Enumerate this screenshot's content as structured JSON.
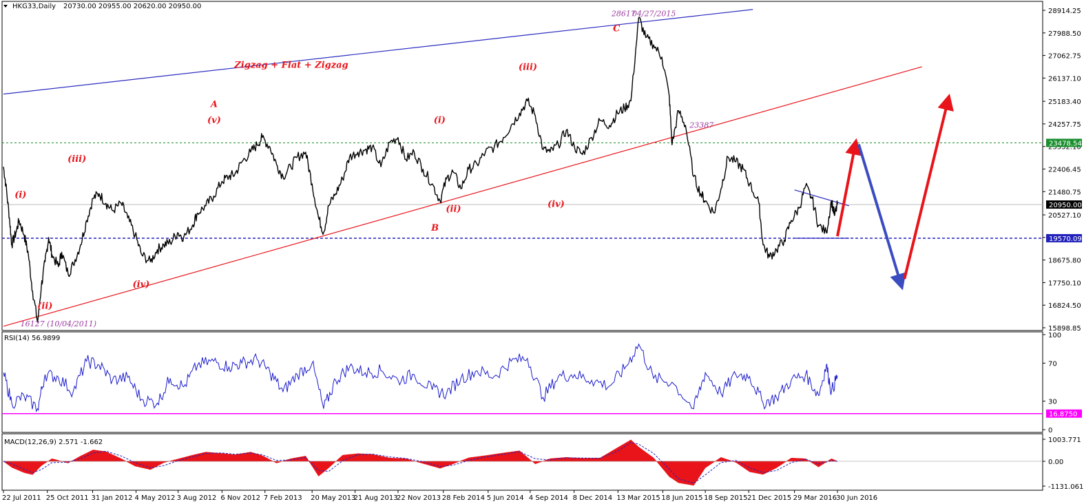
{
  "chart_data": {
    "type": "line",
    "symbol": "HKG33,Daily",
    "ohlc_header": "20730.00 20955.00 20620.00 20950.00",
    "price_panel": {
      "ylim": [
        15898.85,
        28914.25
      ],
      "y_ticks": [
        28914.25,
        27988.5,
        27062.75,
        26137.1,
        25183.4,
        24257.75,
        23332.1,
        22406.45,
        21480.75,
        20527.1,
        19601.4,
        18675.8,
        17750.1,
        16824.5,
        15898.85
      ],
      "price_tags": [
        {
          "label": "23478.54",
          "value": 23478.54,
          "color": "#1a8f2e",
          "text_color": "#ffffff",
          "line": "dotted"
        },
        {
          "label": "20950.00",
          "value": 20950.0,
          "color": "#000000",
          "text_color": "#ffffff",
          "line": "solid-gray"
        },
        {
          "label": "19570.09",
          "value": 19570.09,
          "color": "#2222bb",
          "text_color": "#ffffff",
          "line": "dashed"
        }
      ],
      "series": [
        {
          "type": "line",
          "x": [
            "2011-07-22",
            "2011-07-27",
            "2011-08-04",
            "2011-08-09",
            "2011-08-18",
            "2011-08-25",
            "2011-09-05",
            "2011-09-14",
            "2011-09-23",
            "2011-10-04",
            "2011-10-12",
            "2011-10-20",
            "2011-10-28",
            "2011-11-04",
            "2011-11-18",
            "2011-11-25",
            "2011-12-09",
            "2011-12-20",
            "2012-01-05",
            "2012-01-18",
            "2012-02-01",
            "2012-02-14",
            "2012-02-29",
            "2012-03-14",
            "2012-04-02",
            "2012-04-16",
            "2012-05-02",
            "2012-05-16",
            "2012-06-04",
            "2012-06-19",
            "2012-07-03",
            "2012-07-17",
            "2012-08-02",
            "2012-08-15",
            "2012-09-03",
            "2012-09-14",
            "2012-10-02",
            "2012-10-19",
            "2012-11-06",
            "2012-11-21",
            "2012-12-04",
            "2012-12-19",
            "2013-01-07",
            "2013-01-21",
            "2013-02-01",
            "2013-02-18",
            "2013-03-04",
            "2013-03-18",
            "2013-04-04",
            "2013-04-18",
            "2013-05-06",
            "2013-05-20",
            "2013-06-03",
            "2013-06-14",
            "2013-06-25",
            "2013-07-10",
            "2013-07-25",
            "2013-08-09",
            "2013-08-27",
            "2013-09-12",
            "2013-09-27",
            "2013-10-16",
            "2013-11-04",
            "2013-11-22",
            "2013-12-09",
            "2013-12-27",
            "2014-01-15",
            "2014-02-04",
            "2014-02-21",
            "2014-03-07",
            "2014-03-21",
            "2014-04-07",
            "2014-04-24",
            "2014-05-12",
            "2014-05-30",
            "2014-06-18",
            "2014-07-08",
            "2014-07-25",
            "2014-08-12",
            "2014-08-29",
            "2014-09-15",
            "2014-10-02",
            "2014-10-17",
            "2014-11-04",
            "2014-11-21",
            "2014-12-09",
            "2014-12-26",
            "2015-01-15",
            "2015-02-02",
            "2015-02-23",
            "2015-03-12",
            "2015-03-27",
            "2015-04-10",
            "2015-04-27",
            "2015-05-12",
            "2015-05-29",
            "2015-06-16",
            "2015-07-02",
            "2015-07-08",
            "2015-07-22",
            "2015-08-06",
            "2015-08-24",
            "2015-09-08",
            "2015-09-18",
            "2015-10-07",
            "2015-10-22",
            "2015-11-06",
            "2015-11-23",
            "2015-12-09",
            "2015-12-23",
            "2016-01-12",
            "2016-01-21",
            "2016-02-04",
            "2016-02-19",
            "2016-03-07",
            "2016-03-22",
            "2016-04-08",
            "2016-04-22",
            "2016-05-06",
            "2016-05-20",
            "2016-06-06",
            "2016-06-17",
            "2016-06-24",
            "2016-06-30"
          ],
          "values": [
            22500,
            21800,
            20400,
            19300,
            19800,
            20300,
            19700,
            18900,
            17400,
            16127,
            17600,
            18600,
            19600,
            18900,
            18400,
            19000,
            18100,
            18500,
            19300,
            20300,
            21200,
            21400,
            21000,
            20700,
            21000,
            20400,
            19700,
            18900,
            18600,
            19100,
            19300,
            19400,
            19800,
            19600,
            20100,
            20600,
            20900,
            21300,
            21900,
            22100,
            22200,
            22700,
            23100,
            23400,
            23700,
            23300,
            22600,
            22100,
            22500,
            22900,
            23100,
            21800,
            20400,
            19800,
            20900,
            21400,
            22000,
            22900,
            23100,
            23200,
            23300,
            22500,
            23500,
            23700,
            22800,
            23100,
            22400,
            21800,
            21100,
            22000,
            22300,
            21600,
            22400,
            22600,
            23100,
            23300,
            23700,
            24200,
            24700,
            25200,
            24600,
            23200,
            23100,
            23400,
            24000,
            23300,
            23000,
            23700,
            24400,
            24200,
            24700,
            24900,
            25200,
            28617,
            27800,
            27500,
            27000,
            25400,
            23400,
            24800,
            24200,
            22100,
            21400,
            21100,
            20600,
            21600,
            22900,
            22700,
            22400,
            21800,
            21000,
            19300,
            18800,
            19100,
            19500,
            20300,
            20800,
            21700,
            21200,
            20100,
            19800,
            21100,
            20500,
            20950
          ],
          "color": "#000000"
        }
      ],
      "trendlines": [
        {
          "from": [
            "2011-07-22",
            15960
          ],
          "to": [
            "2016-12-30",
            26600
          ],
          "color": "#e8141a"
        },
        {
          "from": [
            "2011-07-22",
            25480
          ],
          "to": [
            "2015-12-30",
            28950
          ],
          "color": "#2a2ac0"
        },
        {
          "from": [
            "2016-03-29",
            21550
          ],
          "to": [
            "2016-07-25",
            20900
          ],
          "color": "#2a2ac0"
        },
        {
          "from": [
            "2016-03-29",
            19570
          ],
          "to": [
            "2016-07-25",
            19570
          ],
          "color": "#2a2ac0"
        }
      ],
      "arrows": [
        {
          "from": [
            "2016-06-30",
            19650
          ],
          "to": [
            "2016-08-08",
            23450
          ],
          "color": "#e8141a"
        },
        {
          "from": [
            "2016-08-15",
            23420
          ],
          "to": [
            "2016-11-15",
            17650
          ],
          "color": "#3a4cc0"
        },
        {
          "from": [
            "2016-11-22",
            17900
          ],
          "to": [
            "2017-02-25",
            25280
          ],
          "color": "#e8141a"
        }
      ],
      "annotations": [
        {
          "text": "Zigzag + Flat + Zigzag",
          "x": "2013-04-05",
          "y": 26560,
          "class": "wave"
        },
        {
          "text": "(i)",
          "x": "2011-08-28",
          "y": 21230,
          "class": "wave"
        },
        {
          "text": "(ii)",
          "x": "2011-10-20",
          "y": 16680,
          "class": "wave"
        },
        {
          "text": "(iii)",
          "x": "2011-12-28",
          "y": 22700,
          "class": "wave"
        },
        {
          "text": "(iv)",
          "x": "2012-05-15",
          "y": 17560,
          "class": "wave"
        },
        {
          "text": "(v)",
          "x": "2012-10-20",
          "y": 24300,
          "class": "wave"
        },
        {
          "text": "A",
          "x": "2012-10-20",
          "y": 24950,
          "class": "wave"
        },
        {
          "text": "B",
          "x": "2014-02-10",
          "y": 19880,
          "class": "wave"
        },
        {
          "text": "(i)",
          "x": "2014-02-20",
          "y": 24300,
          "class": "wave"
        },
        {
          "text": "(ii)",
          "x": "2014-03-22",
          "y": 20650,
          "class": "wave"
        },
        {
          "text": "(iii)",
          "x": "2014-08-30",
          "y": 26470,
          "class": "wave"
        },
        {
          "text": "(iv)",
          "x": "2014-10-30",
          "y": 20850,
          "class": "wave"
        },
        {
          "text": "C",
          "x": "2015-03-10",
          "y": 28060,
          "class": "wave"
        },
        {
          "text": "28617",
          "x": "2015-03-25",
          "y": 28680,
          "class": "note"
        },
        {
          "text": "04/27/2015",
          "x": "2015-05-30",
          "y": 28680,
          "class": "note"
        },
        {
          "text": "23387",
          "x": "2015-09-10",
          "y": 24100,
          "class": "note"
        },
        {
          "text": "16127 (10/04/2011)",
          "x": "2011-11-18",
          "y": 15950,
          "class": "note"
        }
      ]
    },
    "rsi_panel": {
      "label": "RSI(14) 56.9899",
      "ylim": [
        0,
        100
      ],
      "y_ticks": [
        100,
        70,
        30,
        0
      ],
      "level": {
        "label": "16.8750",
        "value": 16.875,
        "color": "#ff00ff"
      },
      "series": [
        {
          "x": [
            "2011-07-22",
            "2011-08-09",
            "2011-09-05",
            "2011-10-04",
            "2011-10-20",
            "2011-11-18",
            "2011-12-20",
            "2012-01-18",
            "2012-02-14",
            "2012-03-14",
            "2012-04-16",
            "2012-05-16",
            "2012-06-19",
            "2012-07-17",
            "2012-08-15",
            "2012-09-14",
            "2012-10-19",
            "2012-11-21",
            "2012-12-19",
            "2013-01-21",
            "2013-02-18",
            "2013-03-18",
            "2013-04-18",
            "2013-05-20",
            "2013-06-14",
            "2013-07-10",
            "2013-08-09",
            "2013-09-12",
            "2013-10-16",
            "2013-11-22",
            "2013-12-27",
            "2014-02-04",
            "2014-03-07",
            "2014-04-07",
            "2014-05-12",
            "2014-06-18",
            "2014-07-25",
            "2014-08-29",
            "2014-10-02",
            "2014-11-04",
            "2014-12-09",
            "2015-01-15",
            "2015-02-23",
            "2015-03-27",
            "2015-04-27",
            "2015-05-29",
            "2015-07-08",
            "2015-08-24",
            "2015-09-18",
            "2015-10-22",
            "2015-11-23",
            "2015-12-23",
            "2016-01-21",
            "2016-02-19",
            "2016-03-22",
            "2016-04-22",
            "2016-05-20",
            "2016-06-06",
            "2016-06-17",
            "2016-06-30"
          ],
          "values": [
            60,
            28,
            35,
            22,
            58,
            55,
            40,
            72,
            68,
            52,
            55,
            32,
            28,
            54,
            45,
            68,
            72,
            66,
            70,
            74,
            60,
            40,
            58,
            70,
            22,
            52,
            66,
            60,
            62,
            52,
            58,
            42,
            38,
            54,
            62,
            56,
            72,
            75,
            34,
            56,
            58,
            52,
            46,
            64,
            90,
            54,
            50,
            22,
            60,
            38,
            58,
            56,
            28,
            34,
            52,
            58,
            36,
            68,
            40,
            57
          ],
          "color": "#1a1acc"
        }
      ]
    },
    "macd_panel": {
      "label": "MACD(12,26,9) 2.571 -1.662",
      "ylim": [
        -1131.061,
        1003.771
      ],
      "y_ticks": [
        1003.771,
        0.0,
        -1131.061
      ],
      "y_tick_labels": [
        "1003.771",
        "0.00",
        "-1131.061"
      ],
      "histogram_color": "#e8141a",
      "signal_color": "#2222bb",
      "x": [
        "2011-07-22",
        "2011-08-09",
        "2011-09-05",
        "2011-09-23",
        "2011-10-12",
        "2011-11-04",
        "2011-12-09",
        "2012-01-05",
        "2012-02-01",
        "2012-02-29",
        "2012-04-02",
        "2012-05-02",
        "2012-06-04",
        "2012-07-03",
        "2012-08-02",
        "2012-09-03",
        "2012-10-02",
        "2012-11-06",
        "2012-12-04",
        "2013-01-07",
        "2013-02-01",
        "2013-03-04",
        "2013-04-04",
        "2013-05-06",
        "2013-06-03",
        "2013-06-25",
        "2013-07-25",
        "2013-08-27",
        "2013-09-27",
        "2013-11-04",
        "2013-12-09",
        "2014-01-15",
        "2014-02-21",
        "2014-03-21",
        "2014-04-24",
        "2014-05-30",
        "2014-07-08",
        "2014-08-12",
        "2014-09-15",
        "2014-10-17",
        "2014-11-21",
        "2014-12-26",
        "2015-02-02",
        "2015-03-12",
        "2015-04-10",
        "2015-04-27",
        "2015-05-29",
        "2015-07-02",
        "2015-07-22",
        "2015-08-24",
        "2015-09-18",
        "2015-10-22",
        "2015-11-23",
        "2015-12-23",
        "2016-01-21",
        "2016-02-19",
        "2016-03-22",
        "2016-04-22",
        "2016-05-20",
        "2016-06-17",
        "2016-06-30"
      ],
      "macd_values": [
        0,
        -280,
        -520,
        -610,
        -200,
        120,
        -80,
        240,
        520,
        440,
        120,
        -220,
        -380,
        -60,
        100,
        280,
        420,
        360,
        300,
        420,
        260,
        -80,
        120,
        240,
        -680,
        -300,
        280,
        350,
        320,
        150,
        120,
        -100,
        -320,
        -120,
        160,
        260,
        380,
        480,
        -120,
        120,
        180,
        140,
        150,
        620,
        980,
        650,
        160,
        -700,
        -980,
        -1100,
        -300,
        180,
        -50,
        -480,
        -600,
        -300,
        150,
        120,
        -260,
        120,
        2.571
      ],
      "signal_values": [
        0,
        -120,
        -360,
        -520,
        -380,
        -60,
        -40,
        120,
        380,
        460,
        240,
        -60,
        -300,
        -200,
        20,
        200,
        360,
        380,
        320,
        380,
        300,
        40,
        60,
        180,
        -420,
        -460,
        20,
        300,
        330,
        200,
        130,
        -20,
        -240,
        -180,
        40,
        200,
        320,
        440,
        120,
        60,
        160,
        150,
        140,
        460,
        860,
        780,
        360,
        -360,
        -800,
        -1000,
        -620,
        -60,
        40,
        -300,
        -520,
        -420,
        -60,
        100,
        -120,
        20,
        -1.662
      ]
    },
    "x_axis": {
      "tick_labels": [
        "22 Jul 2011",
        "25 Oct 2011",
        "31 Jan 2012",
        "4 May 2012",
        "3 Aug 2012",
        "6 Nov 2012",
        "7 Feb 2013",
        "20 May 2013",
        "21 Aug 2013",
        "22 Nov 2013",
        "28 Feb 2014",
        "5 Jun 2014",
        "4 Sep 2014",
        "8 Dec 2014",
        "13 Mar 2015",
        "18 Jun 2015",
        "18 Sep 2015",
        "21 Dec 2015",
        "29 Mar 2016",
        "30 Jun 2016"
      ],
      "tick_dates": [
        "2011-07-22",
        "2011-10-25",
        "2012-01-31",
        "2012-05-04",
        "2012-08-03",
        "2012-11-06",
        "2013-02-07",
        "2013-05-20",
        "2013-08-21",
        "2013-11-22",
        "2014-02-28",
        "2014-06-05",
        "2014-09-04",
        "2014-12-08",
        "2015-03-13",
        "2015-06-18",
        "2015-09-18",
        "2015-12-21",
        "2016-03-29",
        "2016-06-30"
      ]
    }
  }
}
